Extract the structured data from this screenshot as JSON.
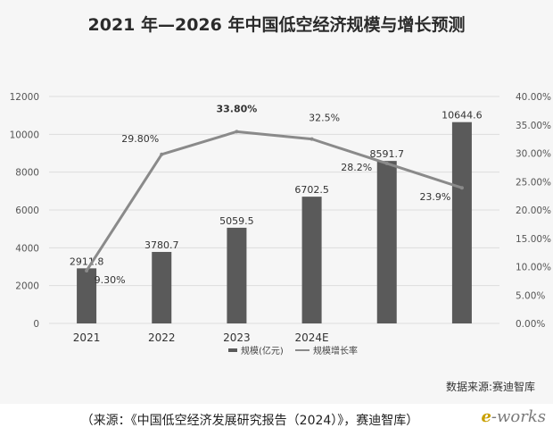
{
  "chart_data": {
    "type": "bar+line",
    "title": "2021 年—2026 年中国低空经济规模与增长预测",
    "categories": [
      "2021",
      "2022",
      "2023",
      "2024E",
      "",
      ""
    ],
    "series": [
      {
        "name": "规模(亿元)",
        "type": "bar",
        "axis": "left",
        "values": [
          2911.8,
          3780.7,
          5059.5,
          6702.5,
          8591.7,
          10644.6
        ],
        "labels": [
          "2911.8",
          "3780.7",
          "5059.5",
          "6702.5",
          "8591.7",
          "10644.6"
        ]
      },
      {
        "name": "规模增长率",
        "type": "line",
        "axis": "right",
        "values": [
          9.3,
          29.8,
          33.8,
          32.5,
          28.2,
          23.9
        ],
        "labels": [
          "9.30%",
          "29.80%",
          "33.80%",
          "32.5%",
          "28.2%",
          "23.9%"
        ]
      }
    ],
    "yleft": {
      "lim": [
        0,
        12000
      ],
      "ticks": [
        "0",
        "2000",
        "4000",
        "6000",
        "8000",
        "10000",
        "12000"
      ]
    },
    "yright": {
      "lim": [
        0,
        40
      ],
      "ticks": [
        "0.00%",
        "5.00%",
        "10.00%",
        "15.00%",
        "20.00%",
        "25.00%",
        "30.00%",
        "35.00%",
        "40.00%"
      ]
    },
    "grid": true,
    "legend": "bottom",
    "source_note": "数据来源:赛迪智库"
  },
  "caption": "（来源：《中国低空经济发展研究报告（2024）》，赛迪智库）",
  "logo": {
    "first": "e",
    "rest": "-works"
  },
  "colors": {
    "bar": "#5a5a5a",
    "line": "#8a8a8a",
    "grid": "#dddddd"
  }
}
